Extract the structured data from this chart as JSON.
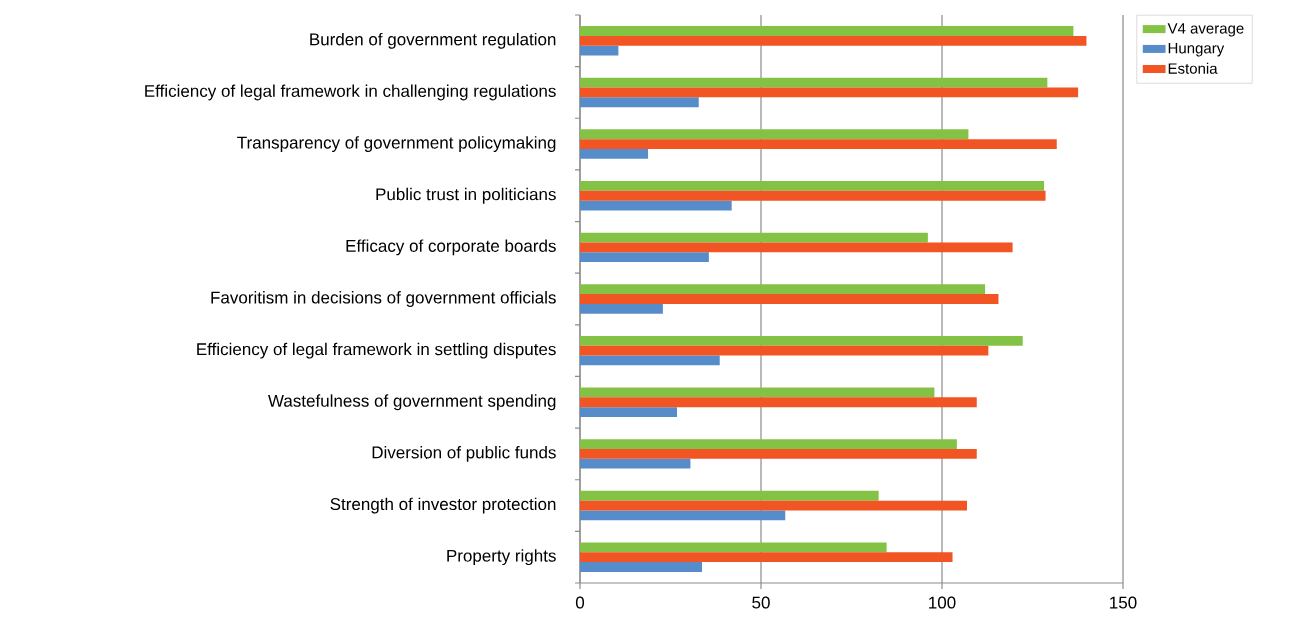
{
  "chart_data": {
    "type": "bar",
    "orientation": "horizontal",
    "categories": [
      "Burden of government regulation",
      "Efficiency of legal framework in challenging regulations",
      "Transparency of government policymaking",
      "Public trust in politicians",
      "Efficacy of corporate boards",
      "Favoritism in decisions of government officials",
      "Efficiency of legal framework in settling disputes",
      "Wastefulness of government spending",
      "Diversion of public funds",
      "Strength of investor protection",
      "Property rights"
    ],
    "series": [
      {
        "name": "V4 average",
        "color": "#84c245",
        "values": [
          136.3,
          129.1,
          107.3,
          128.2,
          96.1,
          111.9,
          122.3,
          97.9,
          104.1,
          82.5,
          84.7
        ]
      },
      {
        "name": "Hungary",
        "color": "#578cca",
        "values": [
          10.6,
          32.8,
          18.8,
          41.9,
          35.6,
          22.9,
          38.6,
          26.8,
          30.5,
          56.7,
          33.7
        ]
      },
      {
        "name": "Estonia",
        "color": "#f05523",
        "values": [
          139.9,
          137.6,
          131.7,
          128.6,
          119.5,
          115.6,
          112.8,
          109.6,
          109.6,
          106.9,
          102.9
        ]
      }
    ],
    "xlim": [
      0,
      150
    ],
    "xticks": [
      0,
      50,
      100,
      150
    ],
    "grid": "x",
    "legend": "top right"
  }
}
